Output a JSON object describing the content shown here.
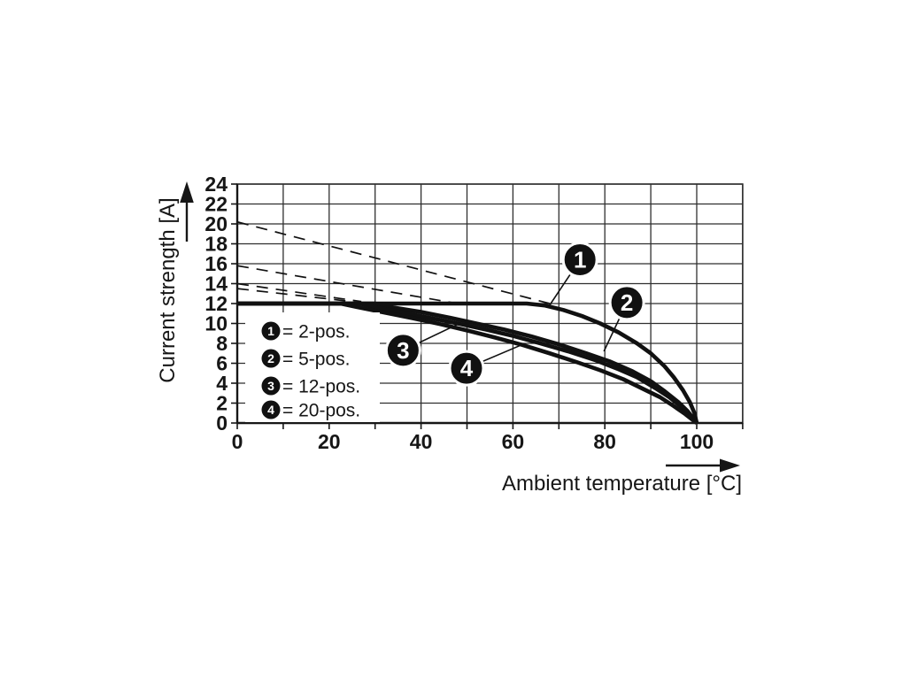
{
  "page": {
    "background": "#ffffff"
  },
  "colors": {
    "ink": "#161616",
    "grid": "#2f2f2f",
    "curve": "#111111",
    "legend_background": "#ffffff"
  },
  "chart_data": {
    "type": "line",
    "title": "",
    "xlabel": "Ambient temperature [°C]",
    "ylabel": "Current strength [A]",
    "xlim": [
      0,
      110
    ],
    "ylim": [
      0,
      24
    ],
    "x_grid_step": 10,
    "y_grid_step": 2,
    "x_tick_labels": [
      0,
      20,
      40,
      60,
      80,
      100
    ],
    "y_tick_labels": [
      0,
      2,
      4,
      6,
      8,
      10,
      12,
      14,
      16,
      18,
      20,
      22,
      24
    ],
    "grid": true,
    "legend_position": "inside-lower-left",
    "series": [
      {
        "id": "1",
        "name": "2-pos.",
        "style": "solid",
        "points": [
          [
            0,
            12
          ],
          [
            63,
            12
          ],
          [
            67,
            11.8
          ],
          [
            71,
            11.35
          ],
          [
            75,
            10.75
          ],
          [
            79,
            10
          ],
          [
            83,
            9.1
          ],
          [
            87,
            8
          ],
          [
            90,
            7
          ],
          [
            93,
            5.7
          ],
          [
            95,
            4.6
          ],
          [
            97,
            3.3
          ],
          [
            98.5,
            2.1
          ],
          [
            99.5,
            1
          ],
          [
            100,
            0
          ]
        ]
      },
      {
        "id": "2",
        "name": "5-pos.",
        "style": "solid",
        "points": [
          [
            0,
            12
          ],
          [
            30,
            12
          ],
          [
            34,
            11.6
          ],
          [
            40,
            11.15
          ],
          [
            46,
            10.6
          ],
          [
            52,
            10
          ],
          [
            58,
            9.4
          ],
          [
            64,
            8.7
          ],
          [
            70,
            7.9
          ],
          [
            76,
            7
          ],
          [
            81,
            6.2
          ],
          [
            86,
            5.2
          ],
          [
            90,
            4.2
          ],
          [
            93,
            3.2
          ],
          [
            96,
            2.1
          ],
          [
            98,
            1.2
          ],
          [
            100,
            0
          ]
        ]
      },
      {
        "id": "3",
        "name": "12-pos.",
        "style": "solid",
        "points": [
          [
            0,
            12
          ],
          [
            26.5,
            12
          ],
          [
            30,
            11.65
          ],
          [
            36,
            11.1
          ],
          [
            42,
            10.55
          ],
          [
            48,
            10
          ],
          [
            54,
            9.4
          ],
          [
            60,
            8.75
          ],
          [
            66,
            8
          ],
          [
            72,
            7.2
          ],
          [
            78,
            6.3
          ],
          [
            83,
            5.4
          ],
          [
            87,
            4.6
          ],
          [
            91,
            3.5
          ],
          [
            94,
            2.6
          ],
          [
            97,
            1.5
          ],
          [
            98.5,
            0.9
          ],
          [
            100,
            0
          ]
        ]
      },
      {
        "id": "4",
        "name": "20-pos.",
        "style": "solid",
        "points": [
          [
            0,
            12
          ],
          [
            22.5,
            12
          ],
          [
            26,
            11.65
          ],
          [
            32,
            11.1
          ],
          [
            38,
            10.55
          ],
          [
            44,
            9.95
          ],
          [
            50,
            9.3
          ],
          [
            56,
            8.6
          ],
          [
            62,
            7.85
          ],
          [
            68,
            7
          ],
          [
            74,
            6.1
          ],
          [
            79,
            5.3
          ],
          [
            84,
            4.4
          ],
          [
            88,
            3.5
          ],
          [
            92,
            2.6
          ],
          [
            95,
            1.7
          ],
          [
            97.5,
            0.9
          ],
          [
            100,
            0
          ]
        ]
      }
    ],
    "dashed_guides": [
      {
        "from": [
          0,
          20.2
        ],
        "to": [
          68,
          12.0
        ]
      },
      {
        "from": [
          0,
          15.8
        ],
        "to": [
          48,
          12.0
        ]
      },
      {
        "from": [
          0,
          14.0
        ],
        "to": [
          27,
          12.2
        ]
      },
      {
        "from": [
          0,
          13.5
        ],
        "to": [
          24,
          12.25
        ]
      }
    ],
    "legend": {
      "entries": [
        {
          "marker": "1",
          "label": "= 2-pos."
        },
        {
          "marker": "2",
          "label": "= 5-pos."
        },
        {
          "marker": "3",
          "label": "= 12-pos."
        },
        {
          "marker": "4",
          "label": "= 20-pos."
        }
      ]
    },
    "callouts": [
      {
        "number": "1",
        "circle": [
          74.6,
          16.4
        ],
        "tip": [
          67.8,
          11.7
        ]
      },
      {
        "number": "2",
        "circle": [
          84.8,
          12.1
        ],
        "tip": [
          79.8,
          7.2
        ]
      },
      {
        "number": "3",
        "circle": [
          36.1,
          7.3
        ],
        "tip": [
          48.8,
          10.1
        ]
      },
      {
        "number": "4",
        "circle": [
          49.9,
          5.5
        ],
        "tip": [
          62.4,
          7.95
        ]
      }
    ]
  }
}
